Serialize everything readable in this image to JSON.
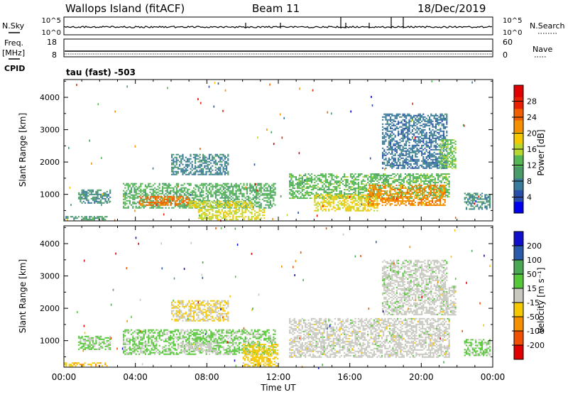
{
  "header": {
    "station": "Wallops Island (fitACF)",
    "beam": "Beam 11",
    "date": "18/Dec/2019"
  },
  "top_panels": {
    "nsky_label": "N.Sky",
    "nsky_ticks": [
      "10^5",
      "10^0"
    ],
    "nsearch_label": "N.Search",
    "nsearch_ticks": [
      "10^5",
      "10^0"
    ],
    "freq_label": "Freq.",
    "freq_unit": "[MHz]",
    "freq_ticks": [
      "18",
      "8"
    ],
    "nave_label": "Nave",
    "nave_ticks": [
      "60",
      "0"
    ],
    "cpid_label": "CPID",
    "cpid_value": "tau (fast) -503"
  },
  "colors": {
    "power_scale": [
      "#0000ee",
      "#2a4faa",
      "#3a7a9a",
      "#4a9a6a",
      "#55b855",
      "#b8d830",
      "#f5c800",
      "#f59000",
      "#f06000",
      "#e82000",
      "#e00000"
    ],
    "velocity_scale": [
      "#e00000",
      "#f05000",
      "#f59000",
      "#f5c800",
      "#c8c8c0",
      "#55c838",
      "#4aa855",
      "#2a5aaa",
      "#1010cc"
    ]
  },
  "chart_data": [
    {
      "type": "heatmap",
      "panel": "power",
      "ylabel": "Slant Range [km]",
      "ylim": [
        180,
        4550
      ],
      "yticks": [
        "1000",
        "2000",
        "3000",
        "4000"
      ],
      "xlim": [
        0,
        24
      ],
      "xticks": [
        "00:00",
        "04:00",
        "08:00",
        "12:00",
        "16:00",
        "20:00",
        "00:00"
      ],
      "colorbar_label": "Power [dB]",
      "colorbar_ticks": [
        "4",
        "8",
        "12",
        "16",
        "20",
        "24",
        "28"
      ],
      "colorbar_range": [
        0,
        32
      ],
      "regions": [
        {
          "t0": 0.0,
          "t1": 2.4,
          "r0": 200,
          "r1": 330,
          "value": 10
        },
        {
          "t0": 0.8,
          "t1": 2.6,
          "r0": 750,
          "r1": 1150,
          "value": 9
        },
        {
          "t0": 3.3,
          "t1": 11.8,
          "r0": 600,
          "r1": 1350,
          "value": 12
        },
        {
          "t0": 4.2,
          "t1": 7.0,
          "r0": 650,
          "r1": 950,
          "value": 24
        },
        {
          "t0": 7.0,
          "t1": 10.5,
          "r0": 600,
          "r1": 800,
          "value": 18
        },
        {
          "t0": 7.5,
          "t1": 11.2,
          "r0": 200,
          "r1": 550,
          "value": 17
        },
        {
          "t0": 6.0,
          "t1": 9.2,
          "r0": 1600,
          "r1": 2250,
          "value": 8
        },
        {
          "t0": 12.6,
          "t1": 21.6,
          "r0": 900,
          "r1": 1650,
          "value": 13
        },
        {
          "t0": 14.0,
          "t1": 17.5,
          "r0": 500,
          "r1": 1000,
          "value": 18
        },
        {
          "t0": 17.0,
          "t1": 21.3,
          "r0": 650,
          "r1": 1300,
          "value": 22
        },
        {
          "t0": 17.8,
          "t1": 21.4,
          "r0": 1800,
          "r1": 3500,
          "value": 7
        },
        {
          "t0": 21.0,
          "t1": 21.9,
          "r0": 1800,
          "r1": 2700,
          "value": 14
        },
        {
          "t0": 22.4,
          "t1": 23.8,
          "r0": 550,
          "r1": 1050,
          "value": 9
        }
      ]
    },
    {
      "type": "heatmap",
      "panel": "velocity",
      "ylabel": "Slant Range [km]",
      "ylim": [
        180,
        4550
      ],
      "yticks": [
        "1000",
        "2000",
        "3000",
        "4000"
      ],
      "xlim": [
        0,
        24
      ],
      "xticks": [
        "00:00",
        "04:00",
        "08:00",
        "12:00",
        "16:00",
        "20:00",
        "00:00"
      ],
      "xlabel": "Time UT",
      "colorbar_label": "Velocity [m s⁻¹]",
      "colorbar_ticks": [
        "200",
        "100",
        "50",
        "15",
        "-15",
        "-50",
        "-100",
        "-200"
      ],
      "colorbar_range": [
        -250,
        250
      ],
      "regions": [
        {
          "t0": 0.0,
          "t1": 2.4,
          "r0": 200,
          "r1": 330,
          "value": -70
        },
        {
          "t0": 0.8,
          "t1": 2.6,
          "r0": 750,
          "r1": 1150,
          "value": 40
        },
        {
          "t0": 3.3,
          "t1": 11.8,
          "r0": 600,
          "r1": 1350,
          "value": 40
        },
        {
          "t0": 6.5,
          "t1": 8.5,
          "r0": 650,
          "r1": 950,
          "value": 0
        },
        {
          "t0": 10.0,
          "t1": 12.0,
          "r0": 200,
          "r1": 900,
          "value": -55
        },
        {
          "t0": 6.0,
          "t1": 9.2,
          "r0": 1600,
          "r1": 2250,
          "value": -30
        },
        {
          "t0": 12.6,
          "t1": 21.6,
          "r0": 500,
          "r1": 1700,
          "value": 0
        },
        {
          "t0": 17.8,
          "t1": 21.4,
          "r0": 1800,
          "r1": 3500,
          "value": 5
        },
        {
          "t0": 21.0,
          "t1": 21.9,
          "r0": 1800,
          "r1": 2700,
          "value": 0
        },
        {
          "t0": 22.4,
          "t1": 23.8,
          "r0": 550,
          "r1": 1050,
          "value": 40
        }
      ]
    }
  ]
}
